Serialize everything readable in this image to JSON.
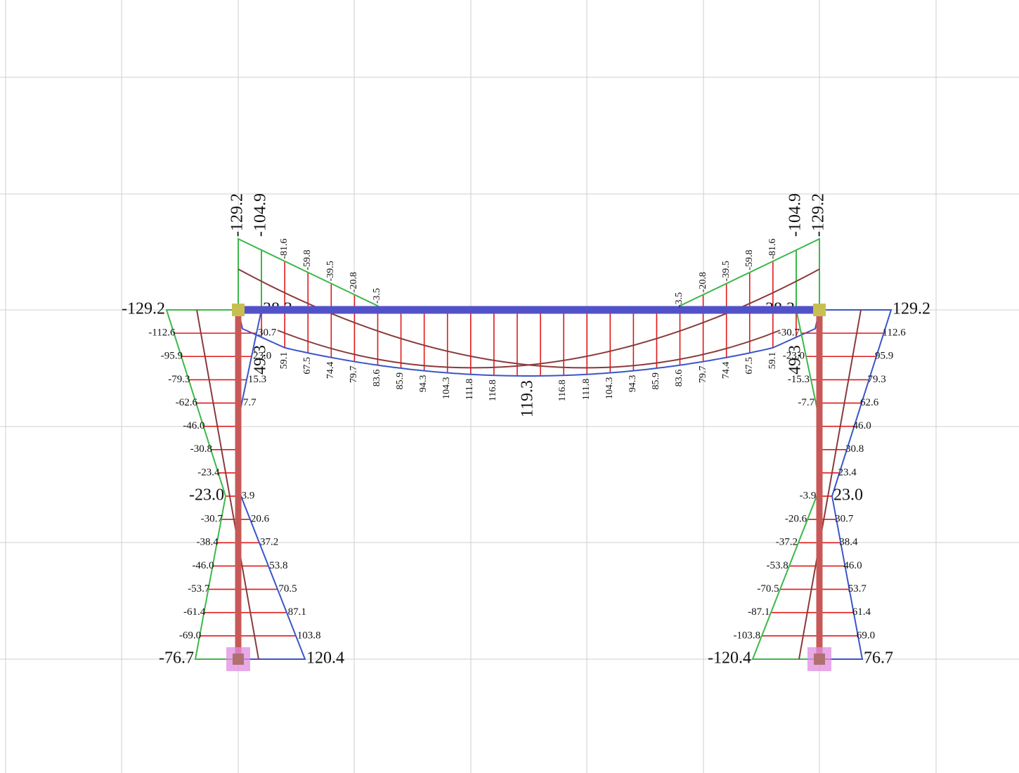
{
  "left_column": {
    "outer_labels": [
      "-129.2",
      "-112.6",
      "-95.9",
      "-79.3",
      "-62.6",
      "-46.0",
      "-30.8",
      "-23.4",
      "-23.0",
      "-30.7",
      "-38.4",
      "-46.0",
      "-53.7",
      "-61.4",
      "-69.0",
      "-76.7"
    ],
    "inner_labels": [
      "38.3",
      "30.7",
      "23.0",
      "15.3",
      "7.7",
      "3.9",
      "20.6",
      "37.2",
      "53.8",
      "70.5",
      "87.1",
      "103.8",
      "120.4"
    ],
    "rotated_label": "49.3"
  },
  "right_column": {
    "outer_labels": [
      "129.2",
      "112.6",
      "95.9",
      "79.3",
      "62.6",
      "46.0",
      "30.8",
      "23.4",
      "23.0",
      "30.7",
      "38.4",
      "46.0",
      "53.7",
      "61.4",
      "69.0",
      "76.7"
    ],
    "inner_labels": [
      "38.3",
      "-30.7",
      "-23.0",
      "-15.3",
      "-7.7",
      "-3.9",
      "-20.6",
      "-37.2",
      "-53.8",
      "-70.5",
      "-87.1",
      "-103.8",
      "-120.4"
    ],
    "rotated_label": "49.3"
  },
  "beam": {
    "top_labels": [
      "-129.2",
      "-104.9",
      "-81.6",
      "-59.8",
      "-39.5",
      "-20.8",
      "-3.5",
      "-3.5",
      "-20.8",
      "-39.5",
      "-59.8",
      "-81.6",
      "-104.9",
      "-129.2"
    ],
    "bottom_labels": [
      "59.1",
      "67.5",
      "74.4",
      "79.7",
      "83.6",
      "85.9",
      "94.3",
      "104.3",
      "111.8",
      "116.8",
      "119.3",
      "116.8",
      "111.8",
      "104.3",
      "94.3",
      "85.9",
      "83.6",
      "79.7",
      "74.4",
      "67.5",
      "59.1"
    ]
  }
}
